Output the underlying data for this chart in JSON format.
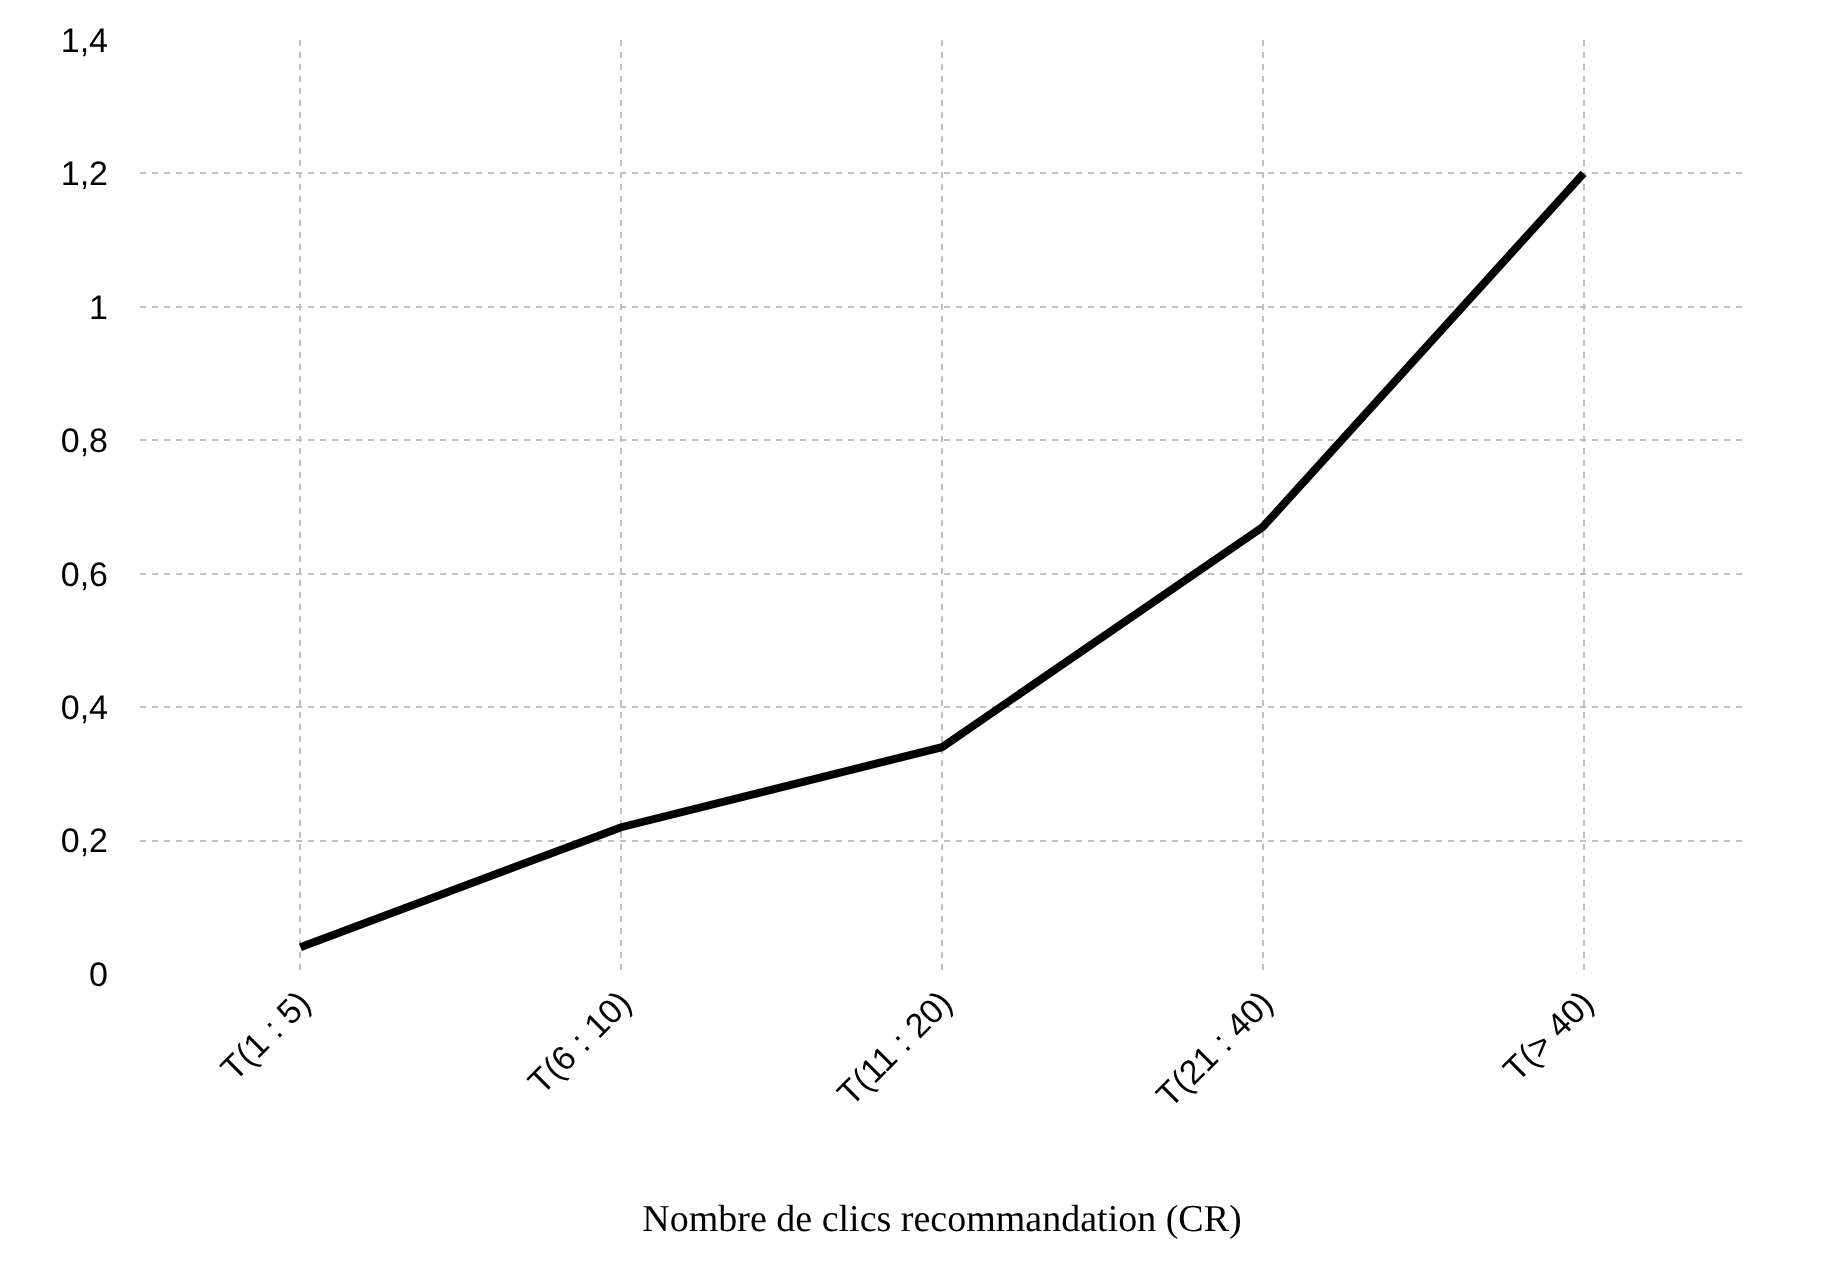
{
  "chart_data": {
    "type": "line",
    "xlabel": "Nombre de clics recommandation (CR)",
    "categories": [
      "T(1 : 5)",
      "T(6 : 10)",
      "T(11 : 20)",
      "T(21 : 40)",
      "T(> 40)"
    ],
    "series": [
      {
        "color": "#000000",
        "values": [
          0.04,
          0.22,
          0.34,
          0.67,
          1.2
        ]
      }
    ],
    "ylim": [
      0,
      1.4
    ],
    "yticks": [
      0,
      {
        "value": 0.2,
        "label": "0,2"
      },
      {
        "value": 0.4,
        "label": "0,4"
      },
      {
        "value": 0.6,
        "label": "0,6"
      },
      {
        "value": 0.8,
        "label": "0,8"
      },
      1,
      {
        "value": 1.2,
        "label": "1,2"
      },
      {
        "value": 1.4,
        "label": "1,4"
      }
    ],
    "grid": true,
    "marker": "none",
    "line_style": "solid"
  }
}
